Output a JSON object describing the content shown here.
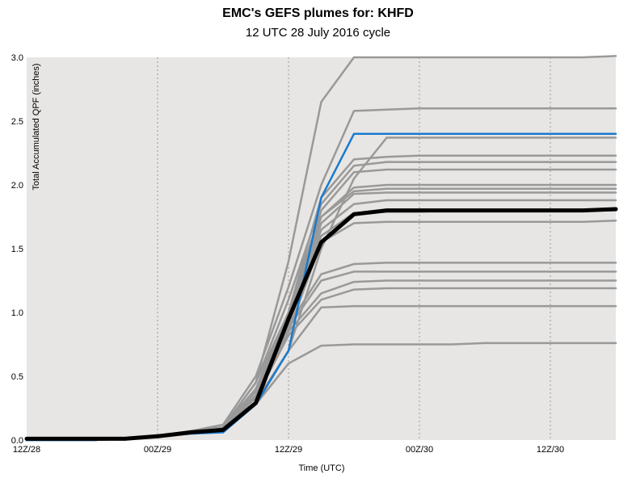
{
  "chart_data": {
    "type": "line",
    "title": "EMC's GEFS plumes for: KHFD",
    "subtitle": "12 UTC 28 July 2016 cycle",
    "xlabel": "Time (UTC)",
    "ylabel": "Total Accumulated QPF (inches)",
    "ylim": [
      0,
      3.0
    ],
    "xlim": [
      0,
      54
    ],
    "x_ticks": [
      {
        "value": 0,
        "label": "12Z/28"
      },
      {
        "value": 12,
        "label": "00Z/29"
      },
      {
        "value": 24,
        "label": "12Z/29"
      },
      {
        "value": 36,
        "label": "00Z/30"
      },
      {
        "value": 48,
        "label": "12Z/30"
      }
    ],
    "y_ticks": [
      0.0,
      0.5,
      1.0,
      1.5,
      2.0,
      2.5,
      3.0
    ],
    "y_tick_labels": [
      "0.0",
      "0.5",
      "1.0",
      "1.5",
      "2.0",
      "2.5",
      "3.0"
    ],
    "grid": "vertical-dotted",
    "x": [
      0,
      3,
      6,
      9,
      12,
      15,
      18,
      21,
      24,
      27,
      30,
      33,
      36,
      39,
      42,
      45,
      48,
      51,
      54
    ],
    "series": [
      {
        "role": "member",
        "color": "#999999",
        "values": [
          0,
          0,
          0,
          0.01,
          0.03,
          0.06,
          0.1,
          0.45,
          1.4,
          2.65,
          3.0,
          3.0,
          3.0,
          3.0,
          3.0,
          3.0,
          3.0,
          3.0,
          3.01
        ]
      },
      {
        "role": "member",
        "color": "#999999",
        "values": [
          0,
          0,
          0,
          0.01,
          0.03,
          0.07,
          0.12,
          0.5,
          1.2,
          2.0,
          2.58,
          2.59,
          2.6,
          2.6,
          2.6,
          2.6,
          2.6,
          2.6,
          2.6
        ]
      },
      {
        "role": "member",
        "color": "#999999",
        "values": [
          0,
          0,
          0,
          0.01,
          0.03,
          0.06,
          0.1,
          0.45,
          1.0,
          1.9,
          2.2,
          2.22,
          2.23,
          2.23,
          2.23,
          2.23,
          2.23,
          2.23,
          2.23
        ]
      },
      {
        "role": "member",
        "color": "#999999",
        "values": [
          0,
          0,
          0,
          0.01,
          0.03,
          0.06,
          0.1,
          0.45,
          1.1,
          1.85,
          2.15,
          2.18,
          2.18,
          2.18,
          2.18,
          2.18,
          2.18,
          2.18,
          2.18
        ]
      },
      {
        "role": "member",
        "color": "#999999",
        "values": [
          0,
          0,
          0,
          0.01,
          0.02,
          0.05,
          0.08,
          0.3,
          0.7,
          1.5,
          2.05,
          2.37,
          2.37,
          2.37,
          2.37,
          2.37,
          2.37,
          2.37,
          2.37
        ]
      },
      {
        "role": "member",
        "color": "#999999",
        "values": [
          0,
          0,
          0,
          0.01,
          0.03,
          0.06,
          0.1,
          0.4,
          1.0,
          1.8,
          2.1,
          2.12,
          2.12,
          2.12,
          2.12,
          2.12,
          2.12,
          2.12,
          2.12
        ]
      },
      {
        "role": "member",
        "color": "#999999",
        "values": [
          0,
          0,
          0,
          0.01,
          0.03,
          0.06,
          0.1,
          0.4,
          0.95,
          1.75,
          1.98,
          2.0,
          2.0,
          2.0,
          2.0,
          2.0,
          2.0,
          2.0,
          2.0
        ]
      },
      {
        "role": "member",
        "color": "#999999",
        "values": [
          0,
          0,
          0,
          0.01,
          0.03,
          0.06,
          0.1,
          0.4,
          0.95,
          1.75,
          1.95,
          1.97,
          1.97,
          1.97,
          1.97,
          1.97,
          1.97,
          1.97,
          1.97
        ]
      },
      {
        "role": "member",
        "color": "#999999",
        "values": [
          0,
          0,
          0,
          0.01,
          0.03,
          0.06,
          0.1,
          0.4,
          0.95,
          1.7,
          1.93,
          1.94,
          1.94,
          1.94,
          1.94,
          1.94,
          1.94,
          1.94,
          1.94
        ]
      },
      {
        "role": "member",
        "color": "#999999",
        "values": [
          0,
          0,
          0,
          0.01,
          0.03,
          0.06,
          0.1,
          0.38,
          0.9,
          1.65,
          1.85,
          1.88,
          1.88,
          1.88,
          1.88,
          1.88,
          1.88,
          1.88,
          1.88
        ]
      },
      {
        "role": "member",
        "color": "#999999",
        "values": [
          0,
          0,
          0,
          0.01,
          0.03,
          0.06,
          0.1,
          0.35,
          0.9,
          1.6,
          1.78,
          1.79,
          1.79,
          1.8,
          1.8,
          1.8,
          1.8,
          1.8,
          1.8
        ]
      },
      {
        "role": "member",
        "color": "#999999",
        "values": [
          0,
          0,
          0,
          0.01,
          0.03,
          0.06,
          0.1,
          0.35,
          0.85,
          1.55,
          1.7,
          1.71,
          1.71,
          1.71,
          1.71,
          1.71,
          1.71,
          1.71,
          1.72
        ]
      },
      {
        "role": "member",
        "color": "#999999",
        "values": [
          0,
          0,
          0,
          0.01,
          0.03,
          0.06,
          0.1,
          0.35,
          0.9,
          1.3,
          1.38,
          1.39,
          1.39,
          1.39,
          1.39,
          1.39,
          1.39,
          1.39,
          1.39
        ]
      },
      {
        "role": "member",
        "color": "#999999",
        "values": [
          0,
          0,
          0,
          0.01,
          0.03,
          0.06,
          0.1,
          0.35,
          0.88,
          1.25,
          1.32,
          1.32,
          1.32,
          1.32,
          1.32,
          1.32,
          1.32,
          1.32,
          1.32
        ]
      },
      {
        "role": "member",
        "color": "#999999",
        "values": [
          0,
          0,
          0,
          0.01,
          0.03,
          0.06,
          0.1,
          0.33,
          0.85,
          1.15,
          1.24,
          1.25,
          1.25,
          1.25,
          1.25,
          1.25,
          1.25,
          1.25,
          1.25
        ]
      },
      {
        "role": "member",
        "color": "#999999",
        "values": [
          0,
          0,
          0,
          0.01,
          0.03,
          0.06,
          0.1,
          0.33,
          0.82,
          1.1,
          1.18,
          1.19,
          1.19,
          1.19,
          1.19,
          1.19,
          1.19,
          1.19,
          1.19
        ]
      },
      {
        "role": "member",
        "color": "#999999",
        "values": [
          0,
          0,
          0,
          0.01,
          0.03,
          0.06,
          0.1,
          0.3,
          0.7,
          1.04,
          1.05,
          1.05,
          1.05,
          1.05,
          1.05,
          1.05,
          1.05,
          1.05,
          1.05
        ]
      },
      {
        "role": "member",
        "color": "#999999",
        "values": [
          0,
          0,
          0,
          0.01,
          0.03,
          0.06,
          0.09,
          0.28,
          0.6,
          0.74,
          0.75,
          0.75,
          0.75,
          0.75,
          0.76,
          0.76,
          0.76,
          0.76,
          0.76
        ]
      },
      {
        "role": "control",
        "color": "#1a7acc",
        "values": [
          0,
          0,
          0,
          0.01,
          0.03,
          0.05,
          0.06,
          0.28,
          0.7,
          1.9,
          2.4,
          2.4,
          2.4,
          2.4,
          2.4,
          2.4,
          2.4,
          2.4,
          2.4
        ]
      },
      {
        "role": "mean",
        "color": "#000000",
        "values": [
          0.01,
          0.01,
          0.01,
          0.01,
          0.03,
          0.06,
          0.08,
          0.29,
          0.95,
          1.55,
          1.77,
          1.8,
          1.8,
          1.8,
          1.8,
          1.8,
          1.8,
          1.8,
          1.81
        ]
      }
    ]
  }
}
